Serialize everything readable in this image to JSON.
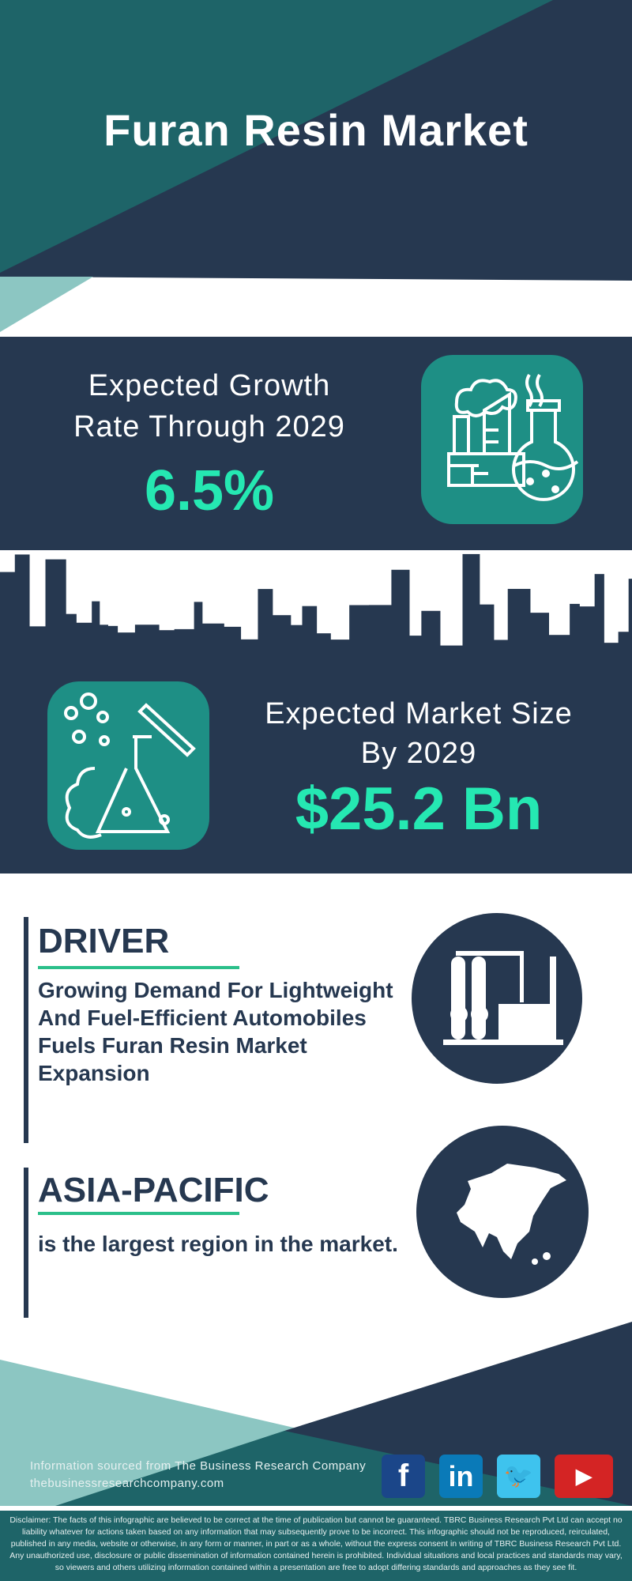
{
  "header": {
    "title": "Furan Resin Market"
  },
  "growth": {
    "label_line1": "Expected Growth",
    "label_line2": "Rate Through 2029",
    "value": "6.5%",
    "icon": "factory-flask-icon"
  },
  "market_size": {
    "label_line1": "Expected Market Size",
    "label_line2": "By 2029",
    "value": "$25.2 Bn",
    "icon": "lab-flask-icon"
  },
  "driver": {
    "title": "DRIVER",
    "text": "Growing Demand For Lightweight And Fuel-Efficient Automobiles Fuels Furan Resin Market Expansion",
    "icon": "industrial-plant-icon"
  },
  "region": {
    "title": "ASIA-PACIFIC",
    "text": "is the largest region in the market.",
    "icon": "asia-map-icon"
  },
  "footer": {
    "source": "Information sourced from The Business Research Company",
    "website": "thebusinessresearchcompany.com",
    "social": [
      {
        "name": "facebook",
        "glyph": "f",
        "color": "#1b4689"
      },
      {
        "name": "linkedin",
        "glyph": "in",
        "color": "#0a7ab8"
      },
      {
        "name": "twitter",
        "glyph": "🐦",
        "color": "#3ec3ee"
      },
      {
        "name": "youtube",
        "glyph": "▶",
        "color": "#d42424"
      }
    ],
    "disclaimer": "Disclaimer: The facts of this infographic are believed to be correct at the time of publication but cannot be guaranteed. TBRC Business Research Pvt Ltd can accept no liability whatever for actions taken based on any information that may subsequently prove to be incorrect. This infographic should not be reproduced, reirculated, published in any media, website or otherwise, in any form or manner, in part or as a whole, without the express consent in writing of TBRC Business Research Pvt Ltd. Any unauthorized use, disclosure or public dissemination of information contained herein is prohibited. Individual situations and local practices and standards may vary, so viewers and others utilizing information contained within a presentation are free to adopt differing standards and approaches as they see fit."
  },
  "colors": {
    "navy": "#263850",
    "teal": "#1e6468",
    "light_teal": "#8cc6c2",
    "accent_green": "#25e8b2",
    "icon_box": "#1e8f85"
  }
}
